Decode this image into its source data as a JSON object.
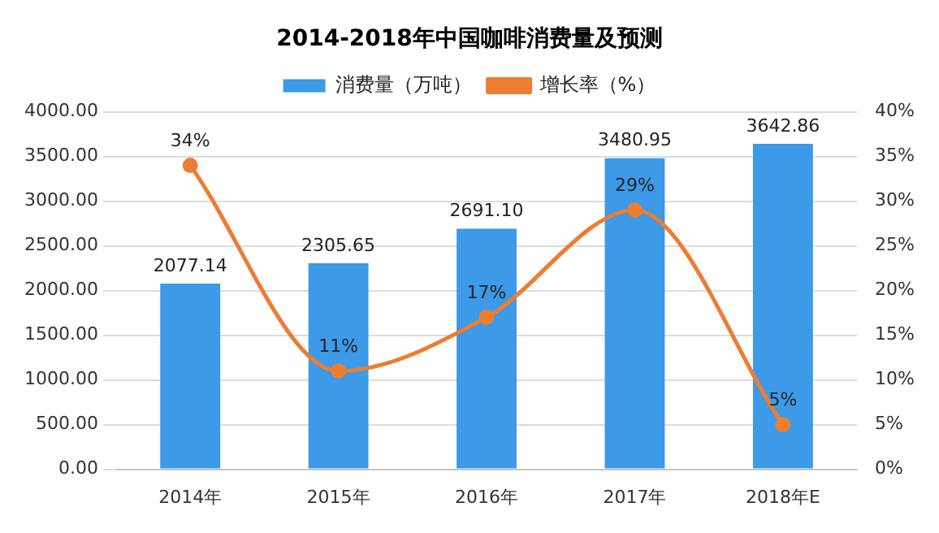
{
  "chart_data": {
    "type": "bar",
    "title": "2014-2018年中国咖啡消费量及预测",
    "categories": [
      "2014年",
      "2015年",
      "2016年",
      "2017年",
      "2018年E"
    ],
    "series": [
      {
        "name": "消费量（万吨）",
        "color": "#3c9ae8",
        "values": [
          2077.14,
          2305.65,
          2691.1,
          3480.95,
          3642.86
        ],
        "value_labels": [
          "2077.14",
          "2305.65",
          "2691.10",
          "3480.95",
          "3642.86"
        ]
      },
      {
        "name": "增长率（%）",
        "type": "line",
        "axis": "y2",
        "color": "#ed7d31",
        "values": [
          34,
          11,
          17,
          29,
          5
        ],
        "value_labels": [
          "34%",
          "11%",
          "17%",
          "29%",
          "5%"
        ],
        "marker": "circle"
      }
    ],
    "ylim": [
      0,
      4000
    ],
    "yticks": [
      {
        "value": 0,
        "label": "0.00"
      },
      {
        "value": 500,
        "label": "500.00"
      },
      {
        "value": 1000,
        "label": "1000.00"
      },
      {
        "value": 1500,
        "label": "1500.00"
      },
      {
        "value": 2000,
        "label": "2000.00"
      },
      {
        "value": 2500,
        "label": "2500.00"
      },
      {
        "value": 3000,
        "label": "3000.00"
      },
      {
        "value": 3500,
        "label": "3500.00"
      },
      {
        "value": 4000,
        "label": "4000.00"
      }
    ],
    "y2lim": [
      0,
      40
    ],
    "y2ticks": [
      {
        "value": 0,
        "label": "0%"
      },
      {
        "value": 5,
        "label": "5%"
      },
      {
        "value": 10,
        "label": "10%"
      },
      {
        "value": 15,
        "label": "15%"
      },
      {
        "value": 20,
        "label": "20%"
      },
      {
        "value": 25,
        "label": "25%"
      },
      {
        "value": 30,
        "label": "30%"
      },
      {
        "value": 35,
        "label": "35%"
      },
      {
        "value": 40,
        "label": "40%"
      }
    ],
    "grid": "y",
    "legend": "top"
  }
}
